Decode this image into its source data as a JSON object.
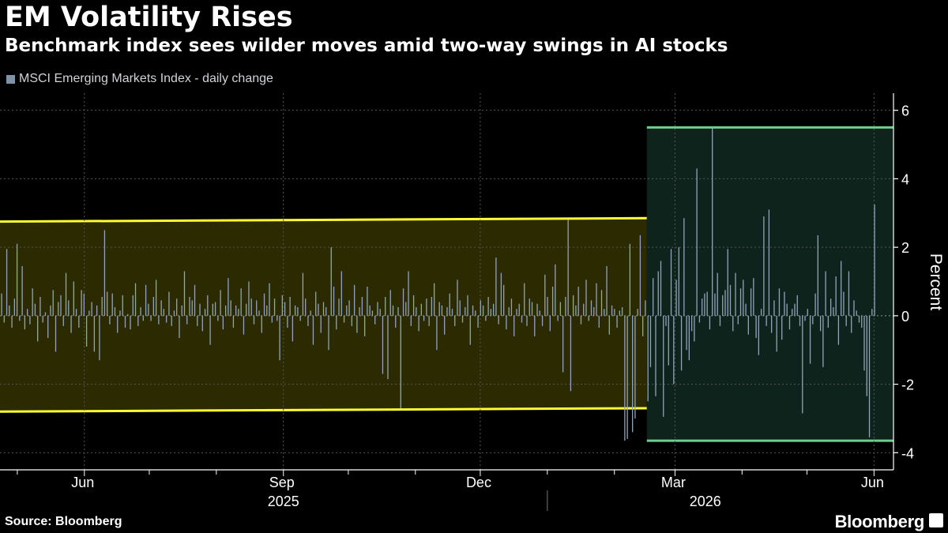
{
  "header": {
    "title": "EM Volatility Rises",
    "subtitle": "Benchmark index sees wilder moves amid two-way swings in AI stocks",
    "legend_label": "MSCI Emerging Markets Index - daily change"
  },
  "footer": {
    "source": "Source: Bloomberg",
    "brand": "Bloomberg"
  },
  "colors": {
    "bars": "#8fa4b8",
    "band_yellow": "#ffff33",
    "band_yellow_fill": "#2b2a00",
    "band_green": "#6ccf8c",
    "band_green_fill": "#0e231c",
    "grid": "#555555",
    "background": "#000000"
  },
  "chart_data": {
    "type": "bar",
    "title": "EM Volatility Rises",
    "subtitle": "Benchmark index sees wilder moves amid two-way swings in AI stocks",
    "ylabel": "Percent",
    "ylim": [
      -4.5,
      6.5
    ],
    "yticks": [
      -4,
      -2,
      0,
      2,
      4,
      6
    ],
    "y_axis_position": "right",
    "grid": true,
    "legend_placement": "top-left",
    "date_range": [
      "2025-04-23",
      "2026-06-10"
    ],
    "x_month_ticks": [
      {
        "date": "2025-05-01",
        "label": ""
      },
      {
        "date": "2025-06-01",
        "label": "Jun"
      },
      {
        "date": "2025-07-01",
        "label": ""
      },
      {
        "date": "2025-08-01",
        "label": ""
      },
      {
        "date": "2025-09-01",
        "label": "Sep"
      },
      {
        "date": "2025-10-01",
        "label": ""
      },
      {
        "date": "2025-11-01",
        "label": ""
      },
      {
        "date": "2025-12-01",
        "label": "Dec"
      },
      {
        "date": "2026-01-01",
        "label": ""
      },
      {
        "date": "2026-02-01",
        "label": ""
      },
      {
        "date": "2026-03-01",
        "label": "Mar"
      },
      {
        "date": "2026-04-01",
        "label": ""
      },
      {
        "date": "2026-05-01",
        "label": ""
      },
      {
        "date": "2026-06-01",
        "label": "Jun"
      }
    ],
    "x_year_labels": [
      {
        "date": "2025-09-01",
        "label": "2025"
      },
      {
        "date": "2026-03-15",
        "label": "2026"
      }
    ],
    "year_divider": "2026-01-01",
    "bands": [
      {
        "color": "yellow",
        "x_start": "2025-04-23",
        "x_end": "2026-02-16",
        "top": [
          2.75,
          2.85
        ],
        "bottom": [
          -2.8,
          -2.7
        ]
      },
      {
        "color": "green",
        "x_start": "2026-02-16",
        "x_end": "2026-06-10",
        "top": [
          5.5,
          5.5
        ],
        "bottom": [
          -3.65,
          -3.65
        ]
      }
    ],
    "series": [
      {
        "name": "MSCI Emerging Markets Index - daily change",
        "values": [
          0.65,
          -0.2,
          1.95,
          0.3,
          -0.35,
          0.5,
          2.1,
          -0.15,
          1.45,
          -0.4,
          0.2,
          -0.25,
          0.8,
          0.35,
          -0.75,
          0.55,
          -0.2,
          0.1,
          -0.65,
          0.3,
          0.75,
          -1.05,
          0.4,
          0.6,
          -0.3,
          1.25,
          0.45,
          -0.5,
          1.0,
          0.2,
          -0.35,
          0.75,
          0.65,
          -0.9,
          0.15,
          0.4,
          -1.05,
          0.3,
          -1.3,
          0.55,
          2.5,
          0.7,
          -0.25,
          0.65,
          0.25,
          -0.5,
          0.15,
          0.6,
          -0.35,
          0.05,
          -0.4,
          0.6,
          0.95,
          -0.3,
          0.25,
          -0.15,
          0.9,
          0.35,
          -0.15,
          0.55,
          1.05,
          -0.25,
          0.45,
          0.2,
          -0.2,
          0.7,
          -0.3,
          0.15,
          0.5,
          -0.65,
          0.3,
          1.3,
          -0.25,
          0.55,
          0.45,
          0.9,
          -0.3,
          0.35,
          -0.45,
          0.2,
          0.6,
          -0.85,
          0.35,
          0.4,
          -0.15,
          0.75,
          -0.4,
          0.3,
          1.1,
          0.45,
          -0.35,
          0.3,
          0.2,
          0.8,
          -0.55,
          0.35,
          1.0,
          0.5,
          -0.25,
          0.45,
          0.15,
          -0.5,
          0.65,
          0.3,
          0.95,
          -0.2,
          0.5,
          -0.15,
          -1.3,
          0.6,
          0.4,
          -0.35,
          0.55,
          -0.75,
          0.3,
          0.25,
          -0.15,
          1.25,
          0.5,
          -0.3,
          0.15,
          -0.85,
          0.7,
          0.35,
          -0.5,
          0.4,
          0.25,
          -1.0,
          2.0,
          0.85,
          -0.4,
          0.5,
          1.3,
          -0.2,
          0.3,
          0.45,
          -0.3,
          0.9,
          -0.5,
          0.25,
          0.55,
          -0.6,
          0.85,
          0.3,
          0.15,
          -0.25,
          0.4,
          0.2,
          -1.7,
          0.55,
          -1.85,
          0.75,
          0.3,
          -0.35,
          0.25,
          -2.7,
          0.8,
          0.4,
          1.3,
          -0.3,
          0.6,
          0.25,
          -0.45,
          0.35,
          -0.15,
          0.5,
          -0.3,
          0.55,
          0.95,
          -1.0,
          0.4,
          0.3,
          -0.55,
          0.25,
          0.65,
          0.2,
          -0.3,
          1.05,
          0.45,
          -0.2,
          0.25,
          0.6,
          -0.85,
          0.3,
          0.15,
          -0.35,
          0.45,
          0.3,
          -0.15,
          0.55,
          0.2,
          0.35,
          1.7,
          -0.25,
          1.25,
          0.9,
          -0.4,
          0.25,
          0.5,
          -0.6,
          0.2,
          0.35,
          -0.2,
          0.95,
          -0.3,
          0.5,
          0.4,
          -0.6,
          0.35,
          0.15,
          -0.3,
          1.2,
          0.55,
          -0.45,
          0.85,
          1.5,
          -0.15,
          0.4,
          -1.65,
          0.55,
          2.8,
          -2.2,
          0.6,
          0.3,
          0.85,
          -0.25,
          0.35,
          1.05,
          -0.15,
          0.45,
          0.25,
          0.95,
          -0.35,
          0.75,
          0.2,
          1.45,
          -0.55,
          0.3,
          0.2,
          -0.35,
          0.15,
          0.25,
          -3.65,
          -3.6,
          2.1,
          -3.4,
          -3.0,
          0.2,
          2.35,
          -0.6,
          0.45,
          -2.5,
          -1.5,
          1.1,
          -2.35,
          1.3,
          1.6,
          -2.95,
          -0.3,
          -1.45,
          1.95,
          -2.0,
          1.05,
          2.0,
          -1.6,
          2.85,
          -1.0,
          -1.3,
          -0.45,
          -0.75,
          4.3,
          -0.2,
          0.5,
          0.65,
          0.7,
          -0.4,
          5.5,
          0.65,
          1.25,
          -0.3,
          0.6,
          0.75,
          1.95,
          0.9,
          -0.45,
          1.25,
          -0.25,
          0.8,
          1.05,
          0.35,
          -0.55,
          0.8,
          1.1,
          -0.65,
          -1.15,
          0.2,
          2.9,
          -0.3,
          3.1,
          -0.5,
          0.45,
          -1.05,
          0.8,
          -0.7,
          0.7,
          0.35,
          -0.4,
          0.2,
          0.35,
          0.6,
          -0.3,
          -2.85,
          -0.15,
          0.2,
          -1.4,
          -0.25,
          0.65,
          2.35,
          -0.45,
          -1.5,
          1.3,
          -0.35,
          0.5,
          0.25,
          1.15,
          -0.85,
          1.6,
          0.7,
          -0.3,
          1.3,
          -0.5,
          0.45,
          0.15,
          -0.2,
          -0.35,
          -1.6,
          -2.35,
          -3.55,
          0.2,
          3.25
        ]
      }
    ]
  }
}
